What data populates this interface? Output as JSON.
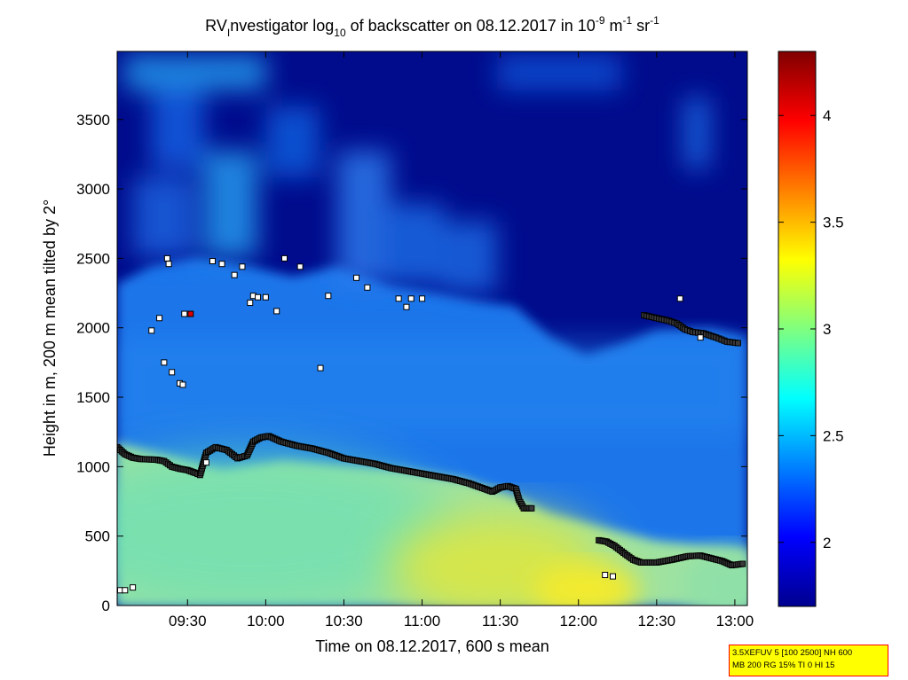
{
  "chart_data": {
    "type": "heatmap",
    "title": {
      "pre": "RV",
      "sub": "I",
      "mid": "nvestigator log",
      "sub2": "10",
      "mid2": " of backscatter on 08.12.2017 in 10",
      "exp1": "-9",
      "mid3": " m",
      "exp2": "-1",
      "mid4": " sr",
      "exp3": "-1"
    },
    "xlabel": "Time on 08.12.2017, 600 s mean",
    "ylabel": "Height in m, 200 m mean tilted by 2°",
    "x_ticks": [
      "09:30",
      "10:00",
      "10:30",
      "11:00",
      "11:30",
      "12:00",
      "12:30",
      "13:00"
    ],
    "x_tick_hours": [
      9.5,
      10.0,
      10.5,
      11.0,
      11.5,
      12.0,
      12.5,
      13.0
    ],
    "xlim_hours": [
      9.05,
      13.08
    ],
    "y_ticks": [
      "0",
      "500",
      "1000",
      "1500",
      "2000",
      "2500",
      "3000",
      "3500"
    ],
    "y_tick_values": [
      0,
      500,
      1000,
      1500,
      2000,
      2500,
      3000,
      3500
    ],
    "ylim": [
      0,
      3990
    ],
    "colorbar": {
      "ticks": [
        "2",
        "2.5",
        "3",
        "3.5",
        "4"
      ],
      "tick_values": [
        2,
        2.5,
        3,
        3.5,
        4
      ],
      "range": [
        1.7,
        4.3
      ],
      "colormap": "jet"
    },
    "boundary_layer_height": [
      [
        9.05,
        1140
      ],
      [
        9.1,
        1090
      ],
      [
        9.15,
        1065
      ],
      [
        9.2,
        1055
      ],
      [
        9.3,
        1050
      ],
      [
        9.35,
        1040
      ],
      [
        9.4,
        1000
      ],
      [
        9.45,
        985
      ],
      [
        9.5,
        975
      ],
      [
        9.55,
        955
      ],
      [
        9.58,
        940
      ],
      [
        9.62,
        1100
      ],
      [
        9.68,
        1140
      ],
      [
        9.75,
        1120
      ],
      [
        9.82,
        1060
      ],
      [
        9.88,
        1080
      ],
      [
        9.92,
        1180
      ],
      [
        9.97,
        1210
      ],
      [
        10.02,
        1220
      ],
      [
        10.1,
        1180
      ],
      [
        10.2,
        1150
      ],
      [
        10.3,
        1130
      ],
      [
        10.4,
        1100
      ],
      [
        10.5,
        1060
      ],
      [
        10.6,
        1040
      ],
      [
        10.7,
        1020
      ],
      [
        10.8,
        990
      ],
      [
        10.9,
        970
      ],
      [
        11.0,
        950
      ],
      [
        11.1,
        930
      ],
      [
        11.2,
        910
      ],
      [
        11.3,
        880
      ],
      [
        11.4,
        840
      ],
      [
        11.45,
        820
      ],
      [
        11.5,
        850
      ],
      [
        11.55,
        860
      ],
      [
        11.6,
        840
      ],
      [
        11.62,
        760
      ],
      [
        11.65,
        700
      ],
      [
        11.7,
        700
      ]
    ],
    "low_layer": [
      [
        12.13,
        470
      ],
      [
        12.18,
        460
      ],
      [
        12.23,
        430
      ],
      [
        12.3,
        370
      ],
      [
        12.35,
        330
      ],
      [
        12.4,
        310
      ],
      [
        12.5,
        310
      ],
      [
        12.6,
        330
      ],
      [
        12.7,
        355
      ],
      [
        12.78,
        360
      ],
      [
        12.85,
        340
      ],
      [
        12.92,
        320
      ],
      [
        12.98,
        290
      ],
      [
        13.05,
        300
      ]
    ],
    "upper_layer": [
      [
        12.42,
        2090
      ],
      [
        12.5,
        2070
      ],
      [
        12.58,
        2050
      ],
      [
        12.63,
        2030
      ],
      [
        12.68,
        1990
      ],
      [
        12.73,
        1970
      ],
      [
        12.8,
        1960
      ],
      [
        12.88,
        1930
      ],
      [
        12.95,
        1900
      ],
      [
        13.02,
        1890
      ]
    ],
    "scattered_points": [
      [
        9.07,
        110
      ],
      [
        9.1,
        110
      ],
      [
        9.15,
        130
      ],
      [
        9.27,
        1980
      ],
      [
        9.32,
        2070
      ],
      [
        9.35,
        1750
      ],
      [
        9.37,
        2500
      ],
      [
        9.38,
        2460
      ],
      [
        9.4,
        1680
      ],
      [
        9.45,
        1600
      ],
      [
        9.47,
        1590
      ],
      [
        9.48,
        2100
      ],
      [
        9.62,
        1030
      ],
      [
        9.66,
        2480
      ],
      [
        9.72,
        2460
      ],
      [
        9.8,
        2380
      ],
      [
        9.85,
        2440
      ],
      [
        9.9,
        2180
      ],
      [
        9.92,
        2230
      ],
      [
        9.95,
        2220
      ],
      [
        10.0,
        2220
      ],
      [
        10.07,
        2120
      ],
      [
        10.12,
        2500
      ],
      [
        10.22,
        2440
      ],
      [
        10.35,
        1710
      ],
      [
        10.4,
        2230
      ],
      [
        10.58,
        2360
      ],
      [
        10.65,
        2290
      ],
      [
        10.85,
        2210
      ],
      [
        10.9,
        2150
      ],
      [
        10.93,
        2210
      ],
      [
        11.0,
        2210
      ],
      [
        12.17,
        220
      ],
      [
        12.22,
        210
      ],
      [
        12.65,
        2210
      ],
      [
        12.78,
        1930
      ]
    ],
    "colored_points": [
      {
        "x": 9.52,
        "y": 2100,
        "color": "#dd0000"
      }
    ]
  },
  "info_box": {
    "line1": "3.5XEFUV 5 [100 2500] NH 600",
    "line2": "MB 200 RG 15% TI 0 HI 15"
  }
}
